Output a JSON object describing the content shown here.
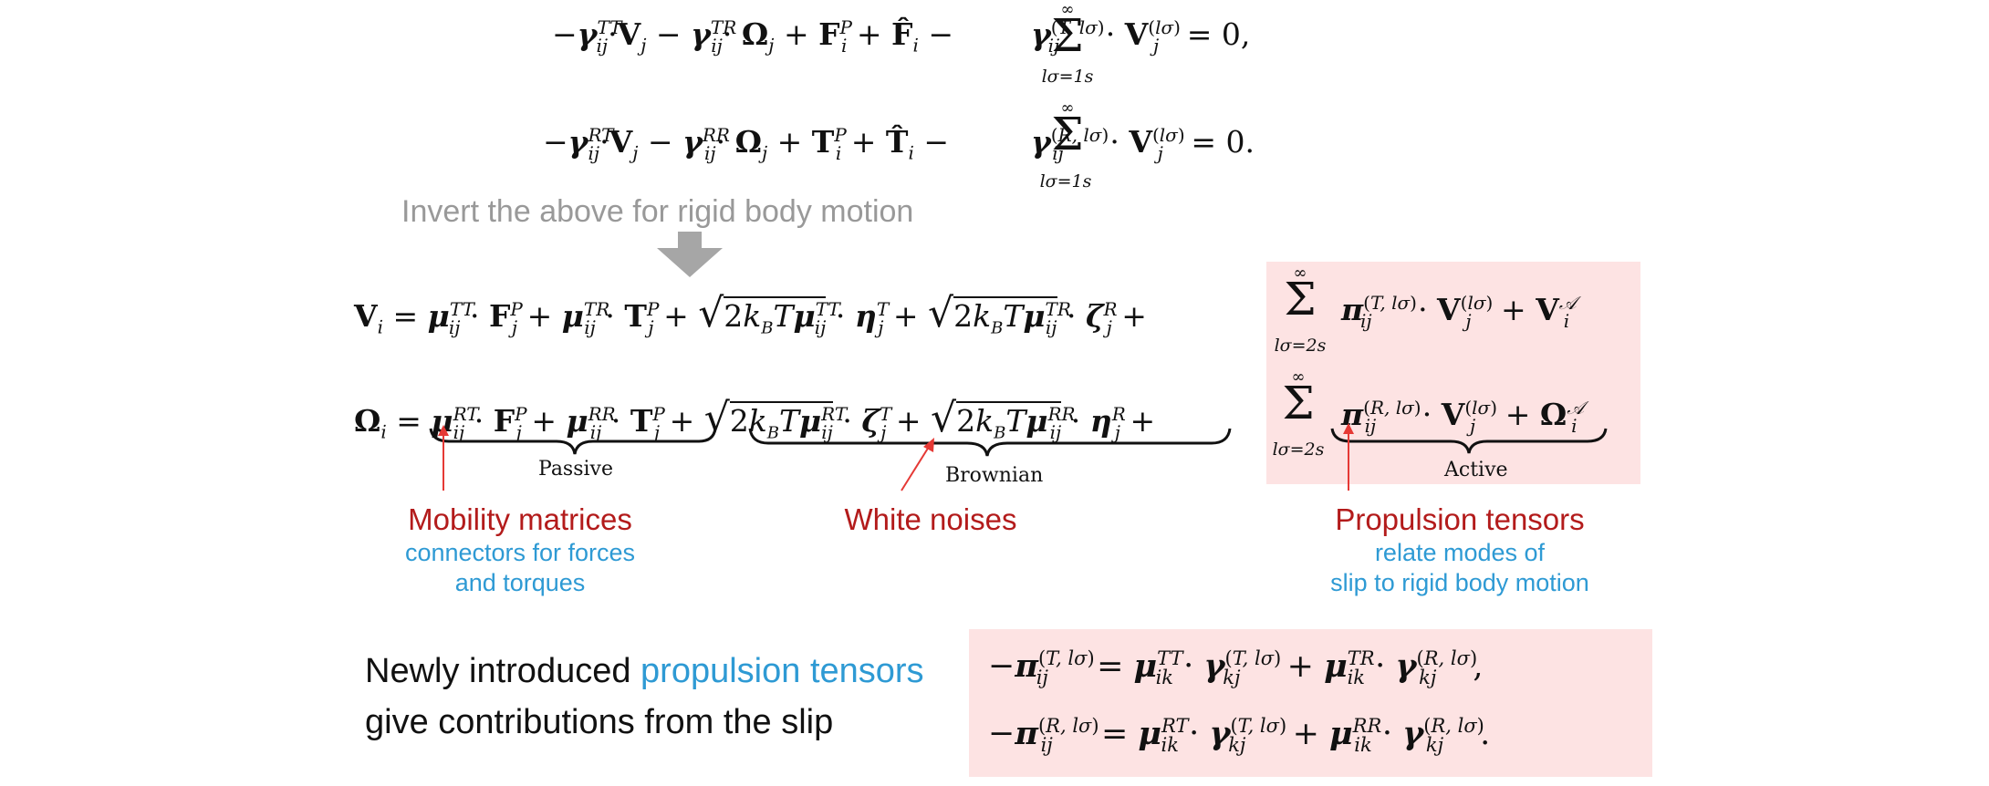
{
  "equations": {
    "top_line_1": "−γᵢⱼᵀᵀ·Vⱼ − γᵢⱼᵀᴿ·Ωⱼ + Fᵢᴾ + F̂ᵢ − Σ γᵢⱼ⁽ᵀ,ˡᵟ⁾ · Vⱼ⁽ˡᵟ⁾ = 0,",
    "top_line_2": "−γᵢⱼᴿᵀ·Vⱼ − γᵢⱼᴿᴿ·Ωⱼ + Tᵢᴾ + T̂ᵢ − Σ γᵢⱼ⁽ᴿ,ˡᵟ⁾ · Vⱼ⁽ˡᵟ⁾ = 0.",
    "sum_upper": "∞",
    "sum_lower_top": "lσ=1s",
    "sum_lower_mid": "lσ=2s",
    "velocity_line": "Vᵢ = μᵢⱼᵀᵀ · Fⱼᴾ + μᵢⱼᵀᴿ · Tⱼᴾ + √(2k_BTμᵢⱼᵀᵀ) · ηⱼᵀ + √(2k_BTμᵢⱼᵀᴿ) · ζⱼᴿ + Σ πᵢⱼ⁽ᵀ,ˡᵟ⁾ · Vⱼ⁽ˡᵟ⁾ + Vᵢᴬ",
    "angular_line": "Ωᵢ = μᵢⱼᴿᵀ · Fⱼᴾ + μᵢⱼᴿᴿ · Tⱼᴾ + √(2k_BTμᵢⱼᴿᵀ) · ζⱼᵀ + √(2k_BTμᵢⱼᴿᴿ) · ηⱼᴿ + Σ πᵢⱼ⁽ᴿ,ˡᵟ⁾ · Vⱼ⁽ˡᵟ⁾ + Ωᵢᴬ",
    "pi_line_1": "−πᵢⱼ⁽ᵀ,ˡᵟ⁾ = μᵢₖᵀᵀ · γₖⱼ⁽ᵀ,ˡᵟ⁾ + μᵢₖᵀᴿ · γₖⱼ⁽ᴿ,ˡᵟ⁾,",
    "pi_line_2": "−πᵢⱼ⁽ᴿ,ˡᵟ⁾ = μᵢₖᴿᵀ · γₖⱼ⁽ᵀ,ˡᵟ⁾ + μᵢₖᴿᴿ · γₖⱼ⁽ᴿ,ˡᵟ⁾."
  },
  "caption_invert": "Invert the above for rigid body motion",
  "braces": {
    "passive": "Passive",
    "brownian": "Brownian",
    "active": "Active"
  },
  "labels": {
    "mobility_title": "Mobility matrices",
    "mobility_desc_1": "connectors for forces",
    "mobility_desc_2": "and torques",
    "noise_title": "White noises",
    "propulsion_title": "Propulsion tensors",
    "propulsion_desc_1": "relate modes of",
    "propulsion_desc_2": "slip to rigid body motion"
  },
  "slip_text": {
    "line1_prefix": "Newly introduced ",
    "line1_highlight": "propulsion tensors",
    "line2": "give contributions from the slip"
  },
  "colors": {
    "highlight_box": "#fde3e3",
    "red_label": "#b31b1b",
    "blue_label": "#2e9ad4",
    "gray_caption": "#999999",
    "arrow_gray": "#a6a6a6"
  }
}
